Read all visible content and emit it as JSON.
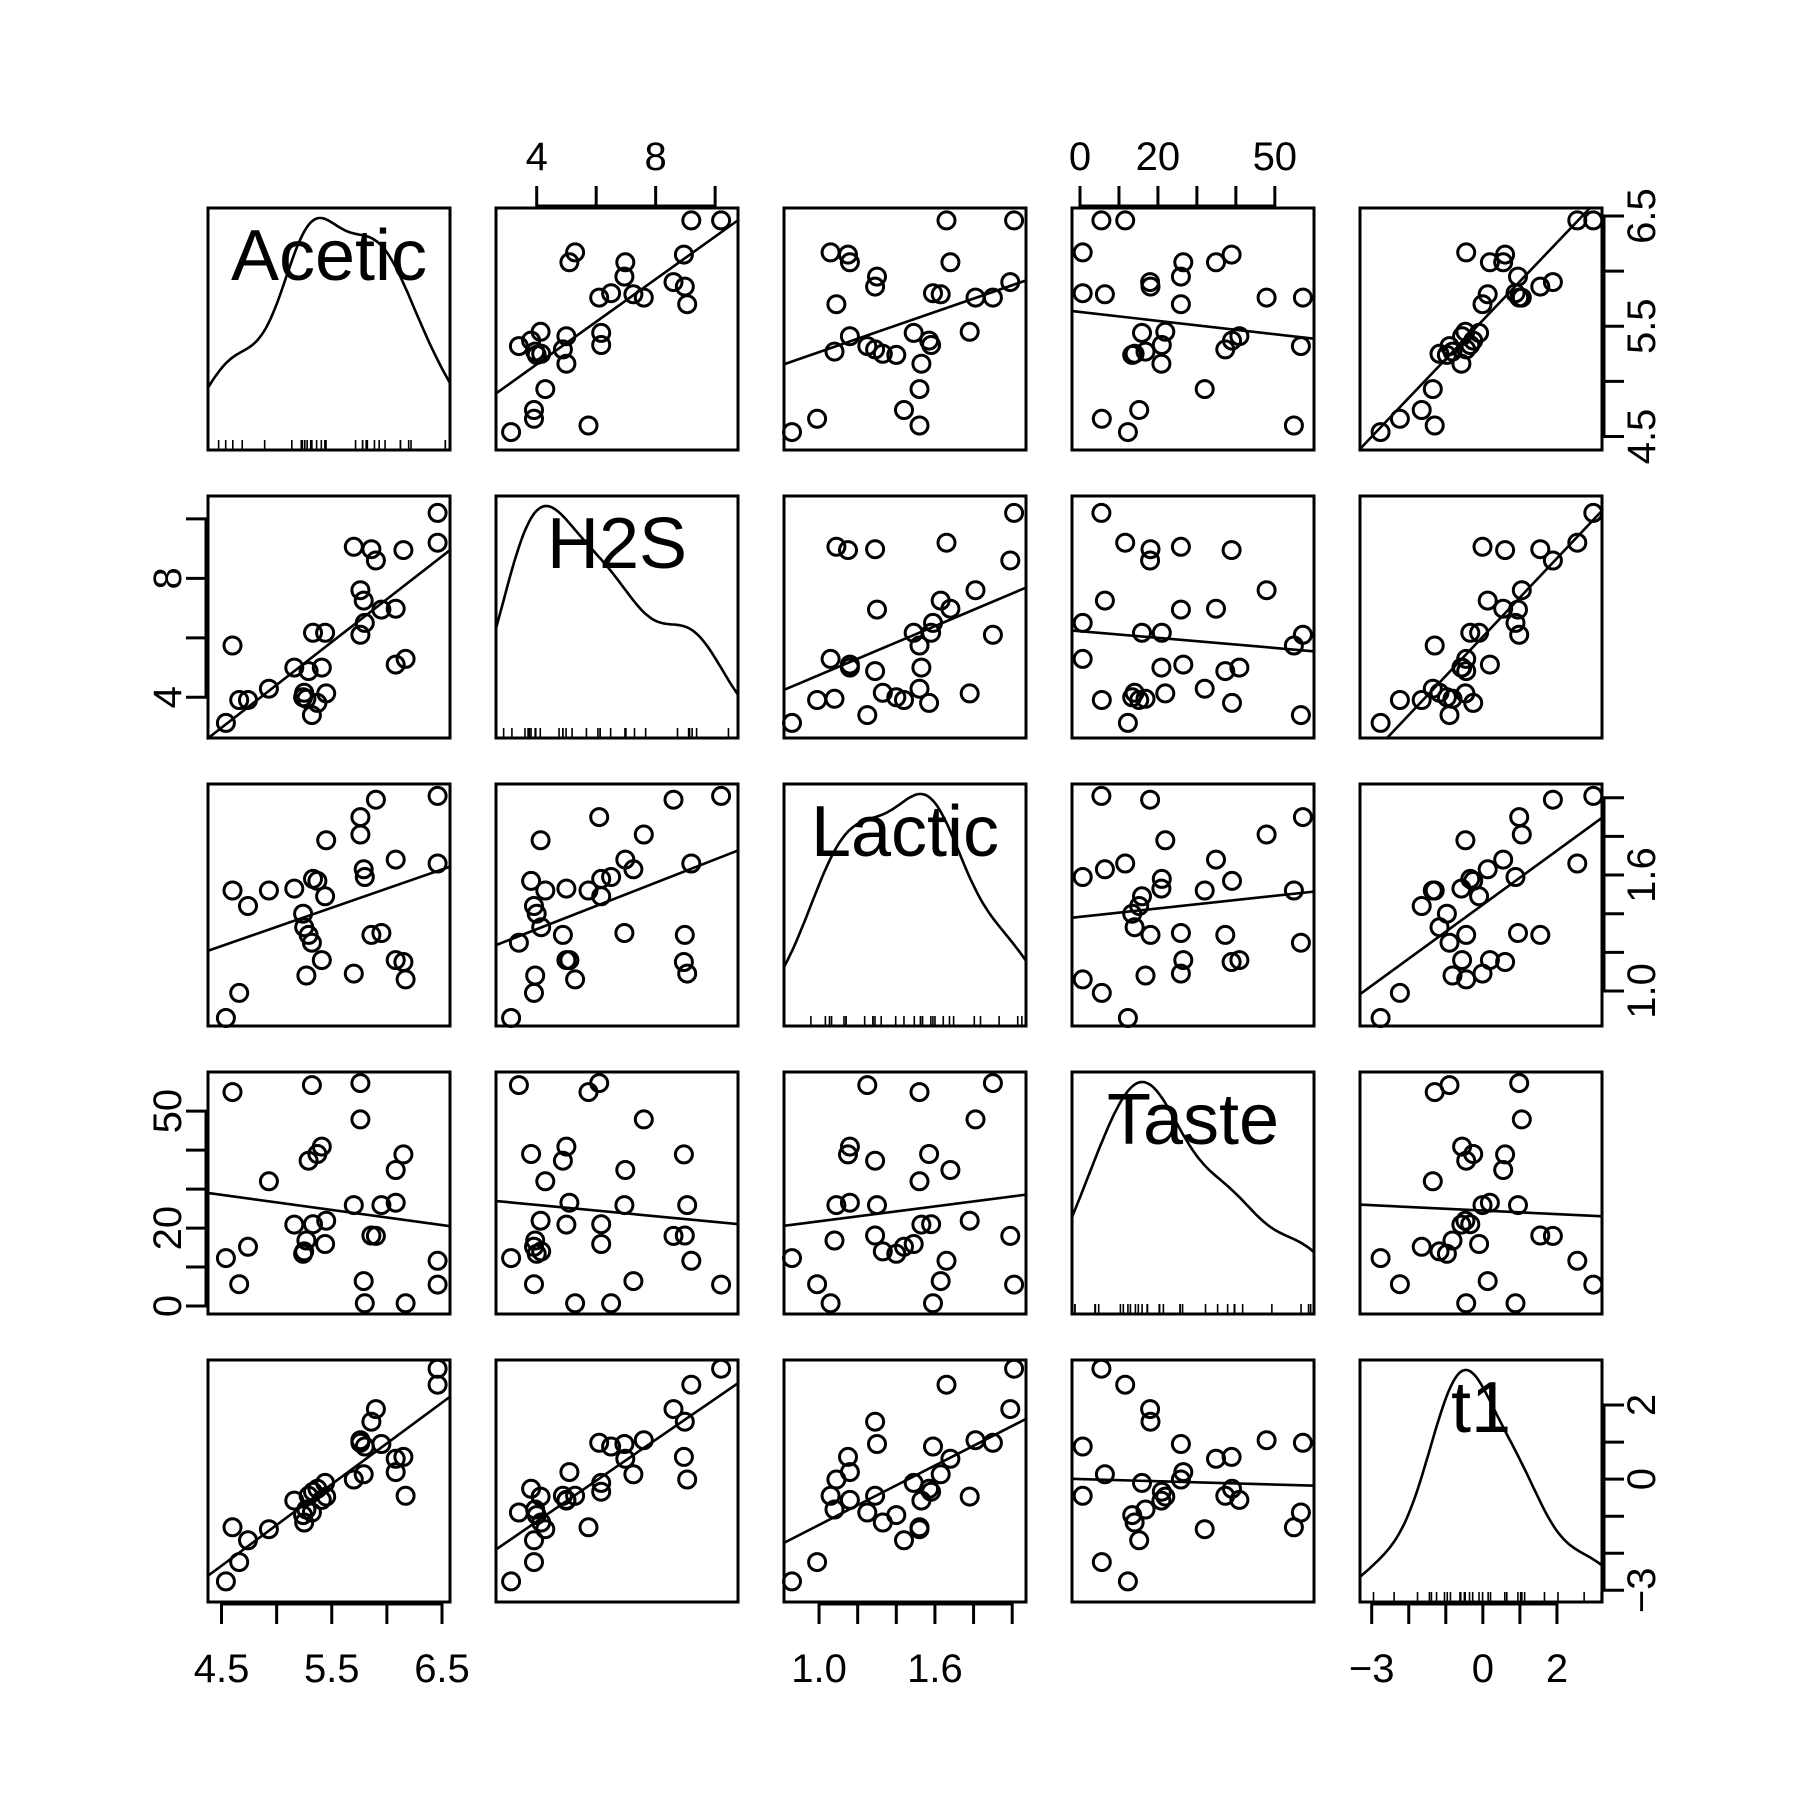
{
  "chart_data": {
    "type": "scatter",
    "matrix": "scatterplot-matrix",
    "variables": [
      "Acetic",
      "H2S",
      "Lactic",
      "Taste",
      "t1"
    ],
    "diagonal": "density curve with rug",
    "off_diagonal": "scatter with least-squares line",
    "ranges": {
      "Acetic": [
        4.45,
        6.5
      ],
      "H2S": [
        2.9,
        10.5
      ],
      "Lactic": [
        0.86,
        2.03
      ],
      "Taste": [
        0,
        58
      ],
      "t1": [
        -3.1,
        3.0
      ]
    },
    "axis_ticks": {
      "Acetic": [
        "4.5",
        "5.5",
        "6.5"
      ],
      "H2S": [
        "4",
        "8"
      ],
      "Lactic": [
        "1.0",
        "1.6"
      ],
      "Taste": [
        "0",
        "20",
        "50"
      ],
      "t1": [
        "−3",
        "0",
        "2"
      ]
    },
    "tick_values": {
      "Acetic": [
        4.5,
        5.0,
        5.5,
        6.0,
        6.5
      ],
      "H2S": [
        4,
        6,
        8,
        10
      ],
      "Lactic": [
        1.0,
        1.2,
        1.4,
        1.6,
        1.8,
        2.0
      ],
      "Taste": [
        0,
        10,
        20,
        30,
        40,
        50
      ],
      "t1": [
        -3,
        -2,
        -1,
        0,
        1,
        2
      ]
    },
    "observations": {
      "Acetic": [
        4.54,
        5.16,
        5.37,
        5.76,
        4.66,
        5.7,
        5.29,
        5.45,
        5.86,
        5.33,
        6.08,
        5.76,
        6.17,
        5.95,
        4.6,
        5.41,
        5.44,
        5.79,
        5.9,
        6.15,
        5.25,
        4.74,
        4.93,
        5.32,
        5.27,
        6.46,
        6.08,
        5.8,
        5.24,
        6.46
      ],
      "H2S": [
        3.14,
        5.0,
        3.81,
        7.6,
        3.91,
        9.06,
        4.88,
        4.13,
        8.98,
        6.17,
        6.98,
        6.1,
        5.29,
        6.95,
        5.74,
        5.0,
        6.17,
        7.25,
        8.6,
        8.95,
        4.15,
        3.91,
        4.29,
        3.4,
        3.95,
        9.2,
        5.1,
        6.5,
        4.0,
        10.2
      ],
      "Lactic": [
        0.86,
        1.53,
        1.57,
        1.81,
        0.99,
        1.09,
        1.29,
        1.78,
        1.29,
        1.58,
        1.68,
        1.9,
        1.06,
        1.3,
        1.52,
        1.16,
        1.49,
        1.63,
        1.99,
        1.15,
        1.33,
        1.44,
        1.52,
        1.25,
        1.08,
        1.66,
        1.16,
        1.59,
        1.4,
        2.01
      ],
      "Taste": [
        12.3,
        20.9,
        39.0,
        47.9,
        5.6,
        25.9,
        37.3,
        21.9,
        18.1,
        21.0,
        34.9,
        57.2,
        0.7,
        25.9,
        54.9,
        40.9,
        15.9,
        6.4,
        18.0,
        38.9,
        14.0,
        15.2,
        32.0,
        56.7,
        16.8,
        11.6,
        26.5,
        0.7,
        13.4,
        5.5
      ],
      "t1": [
        -2.76,
        -0.58,
        -0.26,
        1.05,
        -2.24,
        -0.01,
        -0.45,
        -0.47,
        1.55,
        -0.34,
        0.55,
        0.98,
        -0.45,
        0.95,
        -1.3,
        -0.56,
        -0.1,
        0.13,
        1.89,
        0.6,
        -1.17,
        -1.65,
        -1.35,
        -0.9,
        -0.82,
        2.55,
        0.19,
        0.88,
        -0.97,
        2.98
      ]
    }
  }
}
